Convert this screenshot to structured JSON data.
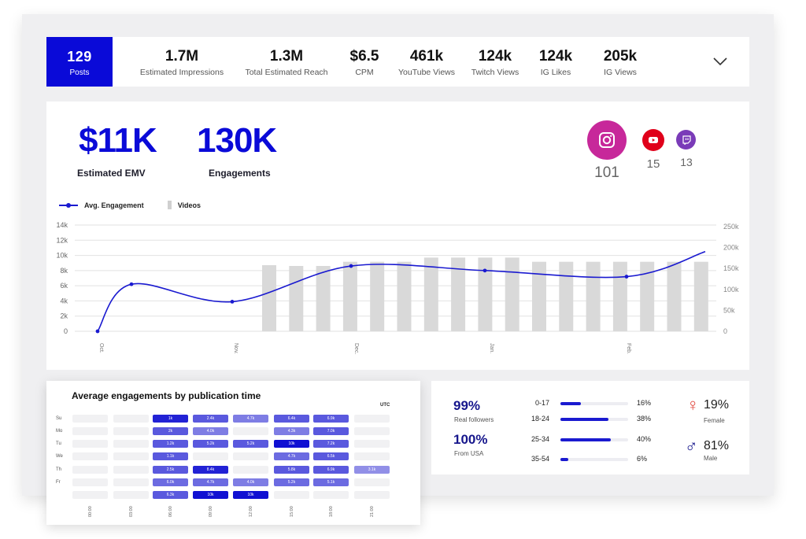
{
  "kpis": {
    "posts": {
      "value": "129",
      "label": "Posts"
    },
    "items": [
      {
        "value": "1.7M",
        "label": "Estimated Impressions"
      },
      {
        "value": "1.3M",
        "label": "Total Estimated Reach"
      },
      {
        "value": "$6.5",
        "label": "CPM"
      },
      {
        "value": "461k",
        "label": "YouTube Views"
      },
      {
        "value": "124k",
        "label": "Twitch Views"
      },
      {
        "value": "124k",
        "label": "IG Likes"
      },
      {
        "value": "205k",
        "label": "IG Views"
      }
    ],
    "expand_icon": "chevron-down-icon"
  },
  "summary": {
    "emv_value": "$11K",
    "emv_label": "Estimated EMV",
    "engagements_value": "130K",
    "engagements_label": "Engagements"
  },
  "platforms": [
    {
      "name": "instagram",
      "icon": "instagram-icon",
      "count": "101",
      "color": "#c7289a"
    },
    {
      "name": "youtube",
      "icon": "youtube-icon",
      "count": "15",
      "color": "#e0001a"
    },
    {
      "name": "twitch",
      "icon": "twitch-icon",
      "count": "13",
      "color": "#7a3bb8"
    }
  ],
  "chart_data": {
    "type": "bar",
    "legend": {
      "line": "Avg. Engagement",
      "bars": "Videos"
    },
    "left_ticks": [
      "0",
      "2k",
      "4k",
      "6k",
      "8k",
      "10k",
      "12k",
      "14k"
    ],
    "right_ticks": [
      "0",
      "50k",
      "100k",
      "150k",
      "200k",
      "250k"
    ],
    "x_ticks": [
      "Oct.",
      "Nov.",
      "Dec.",
      "Jan.",
      "Feb."
    ],
    "left_range": [
      0,
      14000
    ],
    "right_range": [
      0,
      250000
    ],
    "grid": true,
    "line_series": {
      "name": "Avg. Engagement",
      "points": [
        {
          "x": "Oct.",
          "y": 0
        },
        {
          "x": "Oct. (+1)",
          "y": 6200
        },
        {
          "x": "Nov.",
          "y": 3900
        },
        {
          "x": "Dec.",
          "y": 8600
        },
        {
          "x": "Jan.",
          "y": 8000
        },
        {
          "x": "Feb.",
          "y": 7200
        },
        {
          "x": "Feb. (end)",
          "y": 10500
        }
      ]
    },
    "bar_series": {
      "name": "Videos",
      "values": [
        158000,
        156000,
        156000,
        166000,
        166000,
        166000,
        176000,
        176000,
        176000,
        176000,
        166000,
        166000,
        166000,
        166000,
        166000,
        166000,
        166000
      ]
    },
    "colors": {
      "line": "#1a1ad0",
      "bars": "#d9d9d9"
    }
  },
  "heatmap": {
    "title": "Average engagements by publication time",
    "timezone": "UTC",
    "rows": [
      "Su",
      "Mo",
      "Tu",
      "We",
      "Th",
      "Fr",
      ""
    ],
    "cols": [
      "00:00",
      "03:00",
      "06:00",
      "09:00",
      "12:00",
      "15:00",
      "18:00",
      "21:00"
    ],
    "cells": [
      [
        null,
        null,
        {
          "t": "1k",
          "l": 0.9
        },
        {
          "t": "2.4k",
          "l": 0.6
        },
        {
          "t": "4.7k",
          "l": 0.4
        },
        {
          "t": "6.4k",
          "l": 0.6
        },
        {
          "t": "6.9k",
          "l": 0.6
        },
        null
      ],
      [
        null,
        null,
        {
          "t": "2k",
          "l": 0.6
        },
        {
          "t": "4.0k",
          "l": 0.4
        },
        null,
        {
          "t": "4.3k",
          "l": 0.4
        },
        {
          "t": "7.0k",
          "l": 0.6
        },
        null
      ],
      [
        null,
        null,
        {
          "t": "1.2k",
          "l": 0.6
        },
        {
          "t": "5.2k",
          "l": 0.6
        },
        {
          "t": "5.2k",
          "l": 0.6
        },
        {
          "t": "10k",
          "l": 1.0
        },
        {
          "t": "7.2k",
          "l": 0.6
        },
        null
      ],
      [
        null,
        null,
        {
          "t": "1.1k",
          "l": 0.6
        },
        null,
        null,
        {
          "t": "4.7k",
          "l": 0.5
        },
        {
          "t": "6.5k",
          "l": 0.6
        },
        null
      ],
      [
        null,
        null,
        {
          "t": "2.5k",
          "l": 0.6
        },
        {
          "t": "8.4k",
          "l": 0.9
        },
        null,
        {
          "t": "5.8k",
          "l": 0.6
        },
        {
          "t": "6.9k",
          "l": 0.6
        },
        {
          "t": "3.1k",
          "l": 0.3
        }
      ],
      [
        null,
        null,
        {
          "t": "6.0k",
          "l": 0.5
        },
        {
          "t": "4.7k",
          "l": 0.5
        },
        {
          "t": "4.0k",
          "l": 0.4
        },
        {
          "t": "5.2k",
          "l": 0.5
        },
        {
          "t": "5.1k",
          "l": 0.5
        },
        null
      ],
      [
        null,
        null,
        {
          "t": "6.3k",
          "l": 0.6
        },
        {
          "t": "10k",
          "l": 1.0
        },
        {
          "t": "10k",
          "l": 1.0
        },
        null,
        null,
        null
      ]
    ]
  },
  "audience": {
    "real_followers_value": "99%",
    "real_followers_label": "Real followers",
    "usa_value": "100%",
    "usa_label": "From USA",
    "ages": [
      {
        "range": "0-17",
        "pct": "16%",
        "frac": 0.16
      },
      {
        "range": "18-24",
        "pct": "38%",
        "frac": 0.38
      },
      {
        "range": "25-34",
        "pct": "40%",
        "frac": 0.4
      },
      {
        "range": "35-54",
        "pct": "6%",
        "frac": 0.06
      }
    ],
    "female": {
      "pct": "19%",
      "label": "Female",
      "icon": "female-symbol-icon",
      "color": "#e0463c"
    },
    "male": {
      "pct": "81%",
      "label": "Male",
      "icon": "male-symbol-icon",
      "color": "#16168c"
    }
  }
}
